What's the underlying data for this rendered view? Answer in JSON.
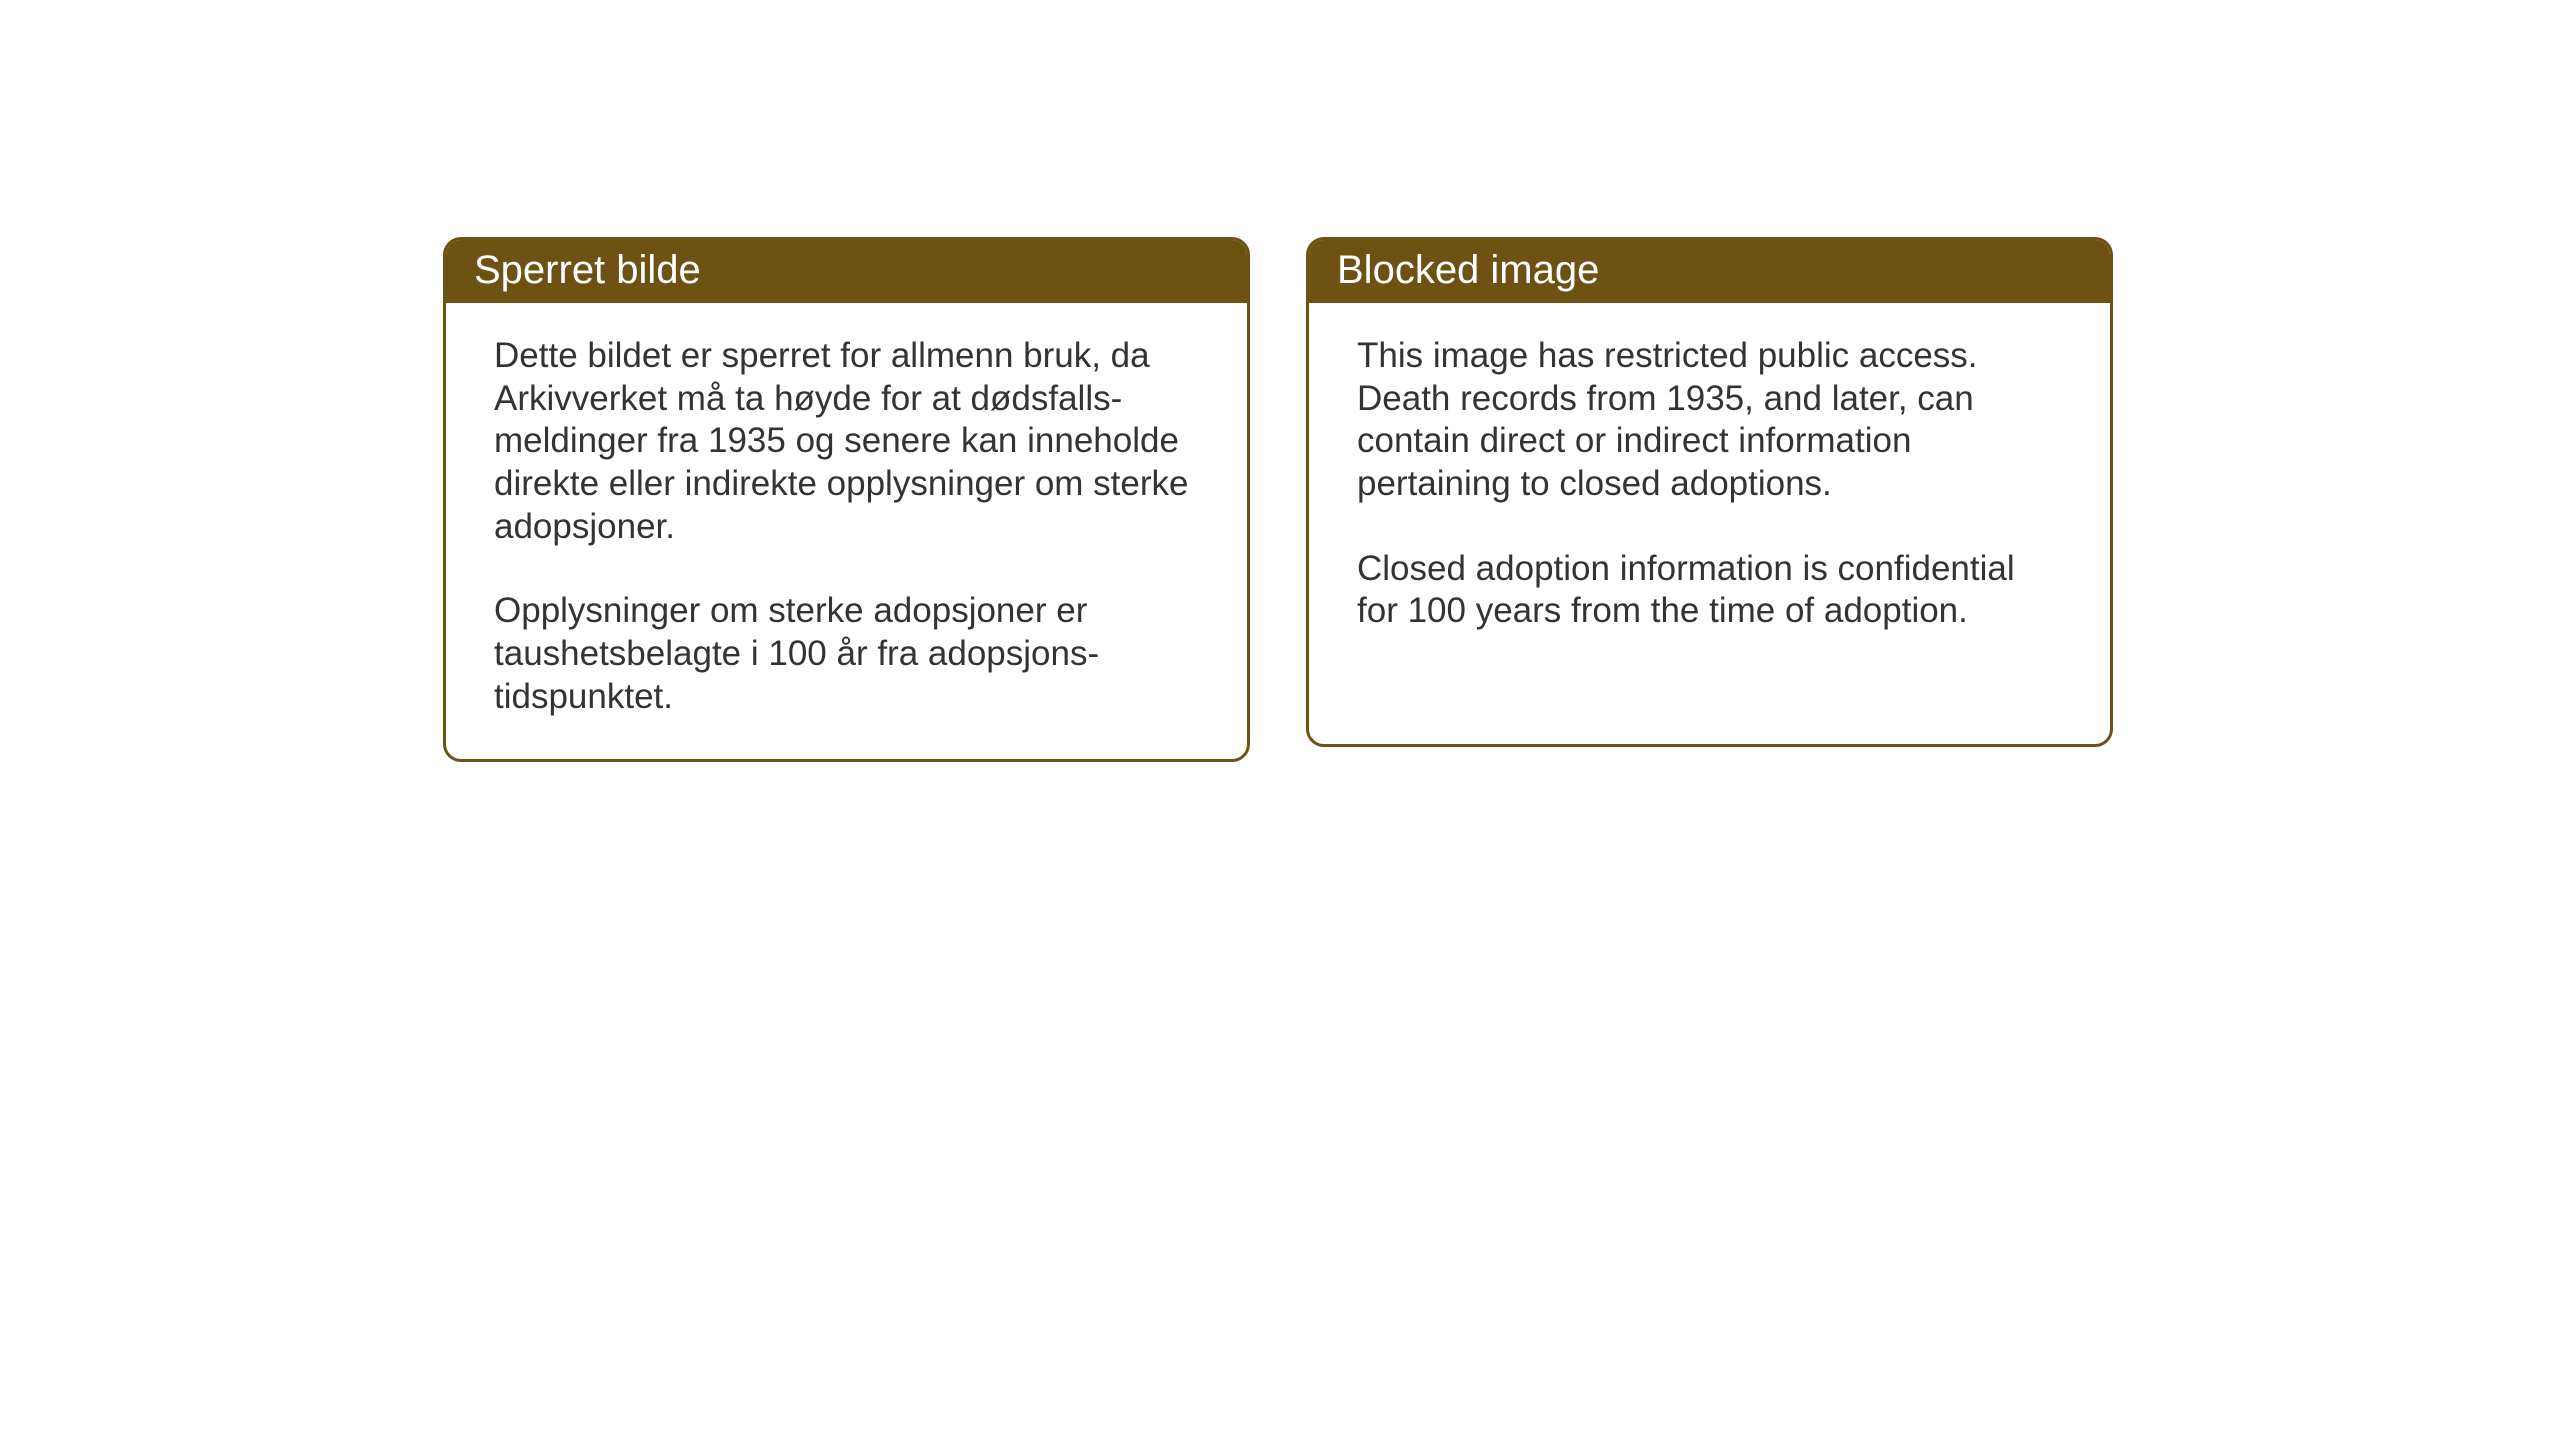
{
  "cards": {
    "left": {
      "title": "Sperret bilde",
      "paragraph1": "Dette bildet er sperret for allmenn bruk, da Arkivverket må ta høyde for at dødsfalls-meldinger fra 1935 og senere kan inneholde direkte eller indirekte opplysninger om sterke adopsjoner.",
      "paragraph2": "Opplysninger om sterke adopsjoner er taushetsbelagte i 100 år fra adopsjons-tidspunktet."
    },
    "right": {
      "title": "Blocked image",
      "paragraph1": "This image has restricted public access. Death records from 1935, and later, can contain direct or indirect information pertaining to closed adoptions.",
      "paragraph2": "Closed adoption information is confidential for 100 years from the time of adoption."
    }
  },
  "styling": {
    "header_background": "#6d5214",
    "header_text_color": "#ffffff",
    "border_color": "#6d5214",
    "body_text_color": "#333333",
    "background_color": "#ffffff",
    "border_radius": 18,
    "border_width": 3,
    "title_fontsize": 40,
    "body_fontsize": 35
  }
}
